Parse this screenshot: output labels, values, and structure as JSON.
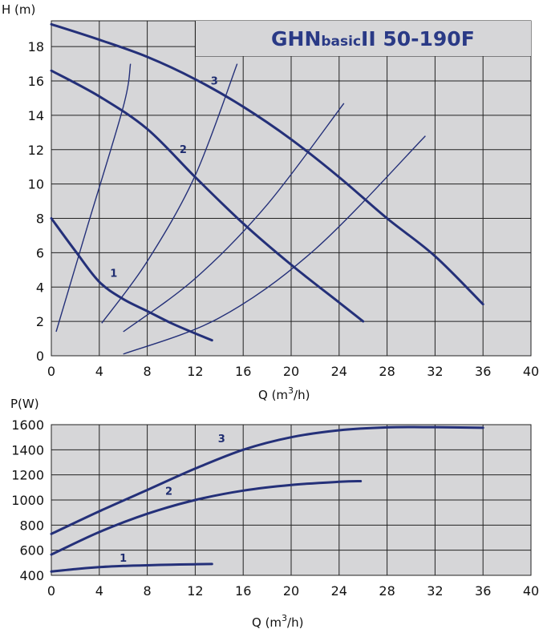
{
  "chart_data": [
    {
      "type": "line",
      "title": "GHNbasicII 50-190F",
      "title_parts": [
        "GHN",
        "basic",
        "II 50-190F"
      ],
      "ylabel": "H (m)",
      "xlabel": "Q (m³/h)",
      "xlabel_parts": [
        "Q (m",
        "3",
        "/h)"
      ],
      "xlim": [
        0,
        40
      ],
      "ylim": [
        0,
        19.5
      ],
      "xticks": [
        0,
        4,
        8,
        12,
        16,
        20,
        24,
        28,
        32,
        36,
        40
      ],
      "yticks": [
        0,
        2,
        4,
        6,
        8,
        10,
        12,
        14,
        16,
        18
      ],
      "grid": true,
      "series": [
        {
          "name": "1",
          "label_at": [
            5.2,
            4.6
          ],
          "points": [
            [
              0,
              8.0
            ],
            [
              2,
              6.1
            ],
            [
              4,
              4.3
            ],
            [
              6,
              3.3
            ],
            [
              8,
              2.6
            ],
            [
              10,
              1.9
            ],
            [
              12,
              1.3
            ],
            [
              13.4,
              0.9
            ]
          ]
        },
        {
          "name": "2",
          "label_at": [
            11.0,
            11.8
          ],
          "points": [
            [
              0,
              16.6
            ],
            [
              4,
              15.1
            ],
            [
              8,
              13.2
            ],
            [
              12,
              10.4
            ],
            [
              16,
              7.7
            ],
            [
              20,
              5.3
            ],
            [
              24,
              3.1
            ],
            [
              26,
              2.0
            ]
          ]
        },
        {
          "name": "3",
          "label_at": [
            13.6,
            15.8
          ],
          "points": [
            [
              0,
              19.3
            ],
            [
              4,
              18.4
            ],
            [
              8,
              17.4
            ],
            [
              12,
              16.1
            ],
            [
              16,
              14.5
            ],
            [
              20,
              12.6
            ],
            [
              24,
              10.4
            ],
            [
              28,
              8.0
            ],
            [
              32,
              5.8
            ],
            [
              36,
              3.0
            ]
          ]
        }
      ],
      "system_curves": [
        {
          "points": [
            [
              0.4,
              1.4
            ],
            [
              3,
              7.5
            ],
            [
              6,
              14.5
            ],
            [
              6.6,
              17.0
            ]
          ]
        },
        {
          "points": [
            [
              4.2,
              1.9
            ],
            [
              8,
              5.5
            ],
            [
              12,
              10.5
            ],
            [
              15.5,
              17.0
            ]
          ]
        },
        {
          "points": [
            [
              6,
              1.4
            ],
            [
              12,
              4.5
            ],
            [
              18,
              8.8
            ],
            [
              24.4,
              14.7
            ]
          ]
        },
        {
          "points": [
            [
              6,
              0.1
            ],
            [
              14,
              2.2
            ],
            [
              22,
              6.2
            ],
            [
              31.2,
              12.8
            ]
          ]
        }
      ]
    },
    {
      "type": "line",
      "ylabel": "P(W)",
      "xlabel": "Q (m³/h)",
      "xlabel_parts": [
        "Q (m",
        "3",
        "/h)"
      ],
      "xlim": [
        0,
        40
      ],
      "ylim": [
        400,
        1600
      ],
      "xticks": [
        0,
        4,
        8,
        12,
        16,
        20,
        24,
        28,
        32,
        36,
        40
      ],
      "yticks": [
        400,
        600,
        800,
        1000,
        1200,
        1400,
        1600
      ],
      "grid": true,
      "series": [
        {
          "name": "1",
          "label_at": [
            6.0,
            510
          ],
          "points": [
            [
              0,
              430
            ],
            [
              2,
              450
            ],
            [
              4,
              465
            ],
            [
              6,
              475
            ],
            [
              8,
              480
            ],
            [
              10,
              485
            ],
            [
              12,
              488
            ],
            [
              13.4,
              490
            ]
          ]
        },
        {
          "name": "2",
          "label_at": [
            9.8,
            1040
          ],
          "points": [
            [
              0,
              565
            ],
            [
              4,
              745
            ],
            [
              8,
              890
            ],
            [
              12,
              1000
            ],
            [
              16,
              1075
            ],
            [
              20,
              1120
            ],
            [
              24,
              1145
            ],
            [
              25.8,
              1150
            ]
          ]
        },
        {
          "name": "3",
          "label_at": [
            14.2,
            1460
          ],
          "points": [
            [
              0,
              730
            ],
            [
              4,
              910
            ],
            [
              8,
              1080
            ],
            [
              12,
              1250
            ],
            [
              16,
              1400
            ],
            [
              20,
              1500
            ],
            [
              24,
              1555
            ],
            [
              28,
              1578
            ],
            [
              32,
              1580
            ],
            [
              36,
              1575
            ]
          ]
        }
      ]
    }
  ],
  "colors": {
    "curve": "#243079",
    "title": "#2a3a86",
    "plot_bg": "#d6d6d8"
  }
}
